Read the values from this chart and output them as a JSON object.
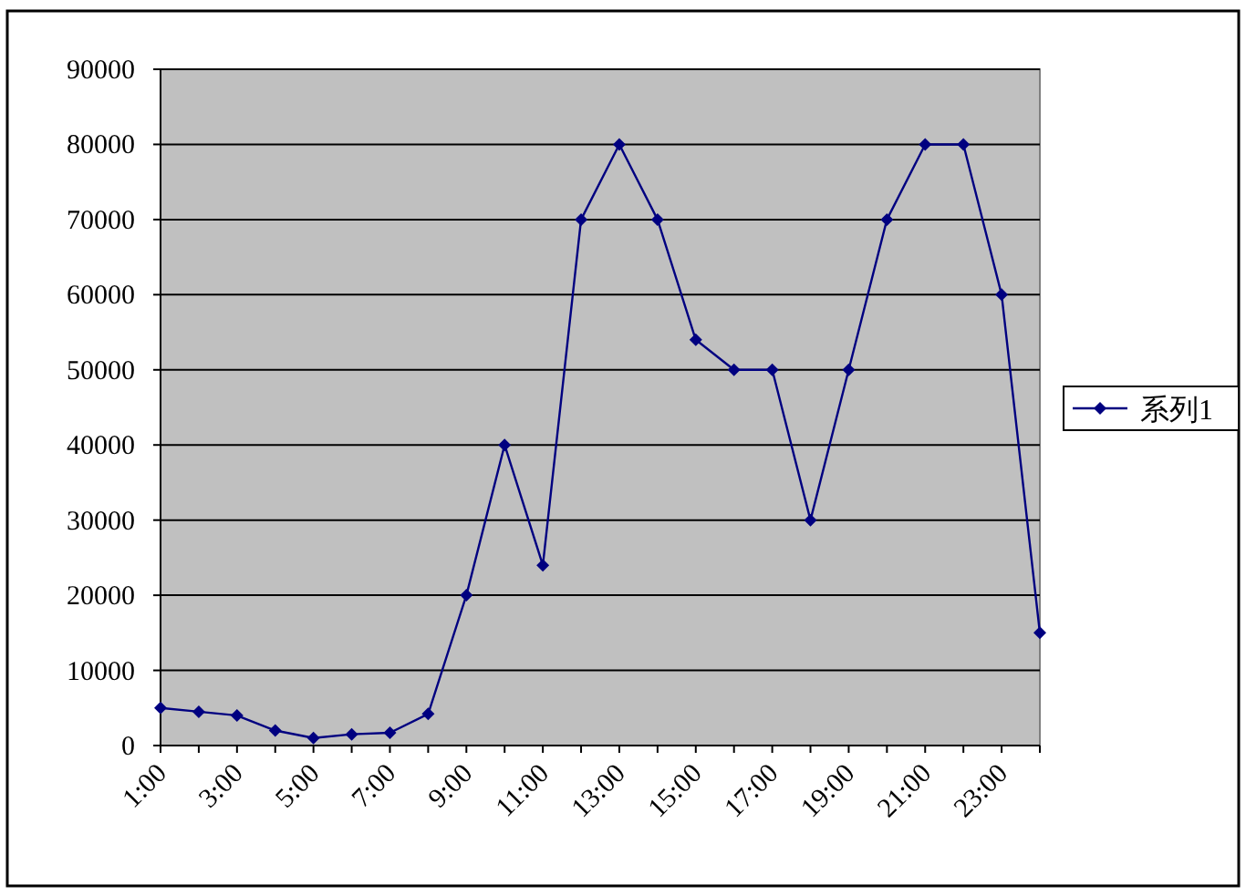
{
  "chart_data": {
    "type": "line",
    "categories": [
      "1:00",
      null,
      "3:00",
      null,
      "5:00",
      null,
      "7:00",
      null,
      "9:00",
      null,
      "11:00",
      null,
      "13:00",
      null,
      "15:00",
      null,
      "17:00",
      null,
      "19:00",
      null,
      "21:00",
      null,
      "23:00",
      null
    ],
    "series": [
      {
        "name": "系列1",
        "color": "#000080",
        "values": [
          5000,
          4500,
          4000,
          2000,
          1000,
          1500,
          1700,
          4200,
          20000,
          40000,
          24000,
          70000,
          80000,
          70000,
          54000,
          50000,
          50000,
          30000,
          50000,
          70000,
          80000,
          80000,
          60000,
          15000
        ]
      }
    ],
    "ylim": [
      0,
      90000
    ],
    "yticks": [
      0,
      10000,
      20000,
      30000,
      40000,
      50000,
      60000,
      70000,
      80000,
      90000
    ],
    "grid": "y",
    "legend": "right",
    "marker": "diamond",
    "line_style": "solid"
  }
}
